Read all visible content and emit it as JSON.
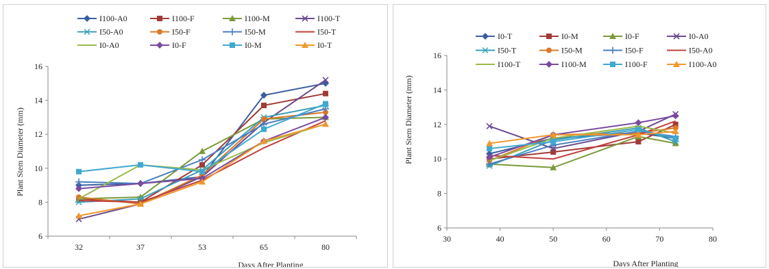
{
  "chart_data": [
    {
      "type": "line",
      "title": "",
      "xlabel": "Days After Planting",
      "ylabel": "Plant Stem Diameter (mm)",
      "x_scale": "categorical",
      "categories": [
        "32",
        "37",
        "53",
        "65",
        "80"
      ],
      "yticks": [
        "6",
        "8",
        "10",
        "12",
        "14",
        "16"
      ],
      "ylim": [
        6,
        16
      ],
      "grid": false,
      "legend_position": "top",
      "series": [
        {
          "name": "I100-A0",
          "color": "#3a5fa0",
          "marker": "diamond",
          "values": [
            9.0,
            9.1,
            9.5,
            14.3,
            15.0
          ]
        },
        {
          "name": "I100-F",
          "color": "#a23a36",
          "marker": "square",
          "values": [
            8.2,
            8.0,
            10.2,
            13.7,
            14.4
          ]
        },
        {
          "name": "I100-M",
          "color": "#7a9a3a",
          "marker": "triangle",
          "values": [
            8.2,
            8.3,
            11.0,
            12.9,
            13.0
          ]
        },
        {
          "name": "I100-T",
          "color": "#6a4a8e",
          "marker": "x",
          "values": [
            7.0,
            7.9,
            9.5,
            12.7,
            15.2
          ]
        },
        {
          "name": "I50-A0",
          "color": "#3a9fb8",
          "marker": "star",
          "values": [
            8.0,
            8.2,
            9.9,
            13.0,
            13.7
          ]
        },
        {
          "name": "I50-F",
          "color": "#d97a2a",
          "marker": "circle",
          "values": [
            8.3,
            7.9,
            9.6,
            12.9,
            13.3
          ]
        },
        {
          "name": "I50-M",
          "color": "#4a7ec0",
          "marker": "plus",
          "values": [
            9.2,
            9.1,
            10.5,
            12.6,
            13.5
          ]
        },
        {
          "name": "I50-T",
          "color": "#c0403a",
          "marker": "none",
          "values": [
            8.1,
            8.0,
            9.3,
            11.2,
            12.8
          ]
        },
        {
          "name": "I0-A0",
          "color": "#9aba4a",
          "marker": "none",
          "values": [
            8.2,
            10.2,
            9.9,
            11.5,
            12.6
          ]
        },
        {
          "name": "I0-F",
          "color": "#7a4aa0",
          "marker": "diamond",
          "values": [
            8.8,
            9.1,
            9.4,
            11.6,
            13.0
          ]
        },
        {
          "name": "I0-M",
          "color": "#40a8d0",
          "marker": "square",
          "values": [
            9.8,
            10.2,
            9.8,
            12.3,
            13.8
          ]
        },
        {
          "name": "I0-T",
          "color": "#f0982e",
          "marker": "triangle",
          "values": [
            7.2,
            7.9,
            9.2,
            11.6,
            12.6
          ]
        }
      ]
    },
    {
      "type": "line",
      "title": "",
      "xlabel": "Days After Planting",
      "ylabel": "Plant Stem Diameter (mm)",
      "x_scale": "linear",
      "xlim": [
        30,
        80
      ],
      "ylim": [
        6,
        16
      ],
      "xticks": [
        "30",
        "40",
        "50",
        "60",
        "70",
        "80"
      ],
      "yticks": [
        "6",
        "8",
        "10",
        "12",
        "14",
        "16"
      ],
      "grid": false,
      "legend_position": "top",
      "x": [
        38,
        50,
        66,
        73
      ],
      "series": [
        {
          "name": "I0-T",
          "color": "#3a5fa0",
          "marker": "diamond",
          "values": [
            10.3,
            11.2,
            11.5,
            11.2
          ]
        },
        {
          "name": "I0-M",
          "color": "#a23a36",
          "marker": "square",
          "values": [
            10.0,
            10.4,
            11.0,
            12.0
          ]
        },
        {
          "name": "I0-F",
          "color": "#7a9a3a",
          "marker": "triangle",
          "values": [
            9.7,
            9.5,
            11.3,
            10.9
          ]
        },
        {
          "name": "I0-A0",
          "color": "#6a4a8e",
          "marker": "x",
          "values": [
            11.9,
            10.6,
            11.6,
            12.6
          ]
        },
        {
          "name": "I50-T",
          "color": "#3a9fb8",
          "marker": "star",
          "values": [
            9.6,
            11.1,
            11.8,
            11.0
          ]
        },
        {
          "name": "I50-M",
          "color": "#d97a2a",
          "marker": "circle",
          "values": [
            9.9,
            11.4,
            11.5,
            11.8
          ]
        },
        {
          "name": "I50-F",
          "color": "#4a7ec0",
          "marker": "plus",
          "values": [
            9.7,
            10.8,
            11.6,
            11.3
          ]
        },
        {
          "name": "I50-A0",
          "color": "#c0403a",
          "marker": "none",
          "values": [
            10.2,
            10.0,
            11.4,
            12.2
          ]
        },
        {
          "name": "I100-T",
          "color": "#9aba4a",
          "marker": "none",
          "values": [
            9.9,
            11.2,
            11.9,
            11.5
          ]
        },
        {
          "name": "I100-M",
          "color": "#7a4aa0",
          "marker": "diamond",
          "values": [
            10.1,
            11.4,
            12.1,
            12.5
          ]
        },
        {
          "name": "I100-F",
          "color": "#40a8d0",
          "marker": "square",
          "values": [
            10.6,
            11.0,
            11.7,
            11.2
          ]
        },
        {
          "name": "I100-A0",
          "color": "#f0982e",
          "marker": "triangle",
          "values": [
            10.9,
            11.4,
            11.4,
            11.6
          ]
        }
      ]
    }
  ]
}
